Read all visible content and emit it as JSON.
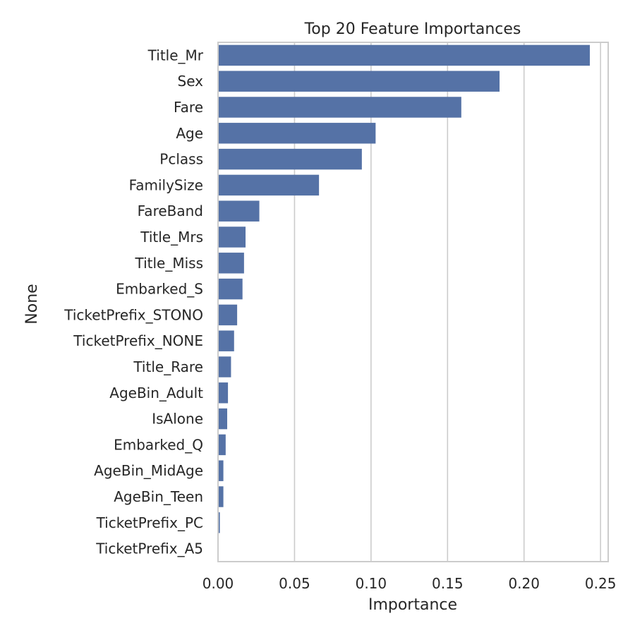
{
  "chart_data": {
    "type": "bar",
    "orientation": "horizontal",
    "title": "Top 20 Feature Importances",
    "xlabel": "Importance",
    "ylabel": "None",
    "xlim": [
      0,
      0.255
    ],
    "xticks": [
      0.0,
      0.05,
      0.1,
      0.15,
      0.2,
      0.25
    ],
    "xtick_labels": [
      "0.00",
      "0.05",
      "0.10",
      "0.15",
      "0.20",
      "0.25"
    ],
    "grid": "vertical",
    "bar_color": "#5572a6",
    "categories": [
      "Title_Mr",
      "Sex",
      "Fare",
      "Age",
      "Pclass",
      "FamilySize",
      "FareBand",
      "Title_Mrs",
      "Title_Miss",
      "Embarked_S",
      "TicketPrefix_STONO",
      "TicketPrefix_NONE",
      "Title_Rare",
      "AgeBin_Adult",
      "IsAlone",
      "Embarked_Q",
      "AgeBin_MidAge",
      "AgeBin_Teen",
      "TicketPrefix_PC",
      "TicketPrefix_A5"
    ],
    "values": [
      0.243,
      0.184,
      0.159,
      0.103,
      0.094,
      0.066,
      0.027,
      0.018,
      0.017,
      0.016,
      0.0125,
      0.0105,
      0.0085,
      0.0065,
      0.006,
      0.005,
      0.0035,
      0.0035,
      0.0012,
      0.0002
    ]
  }
}
